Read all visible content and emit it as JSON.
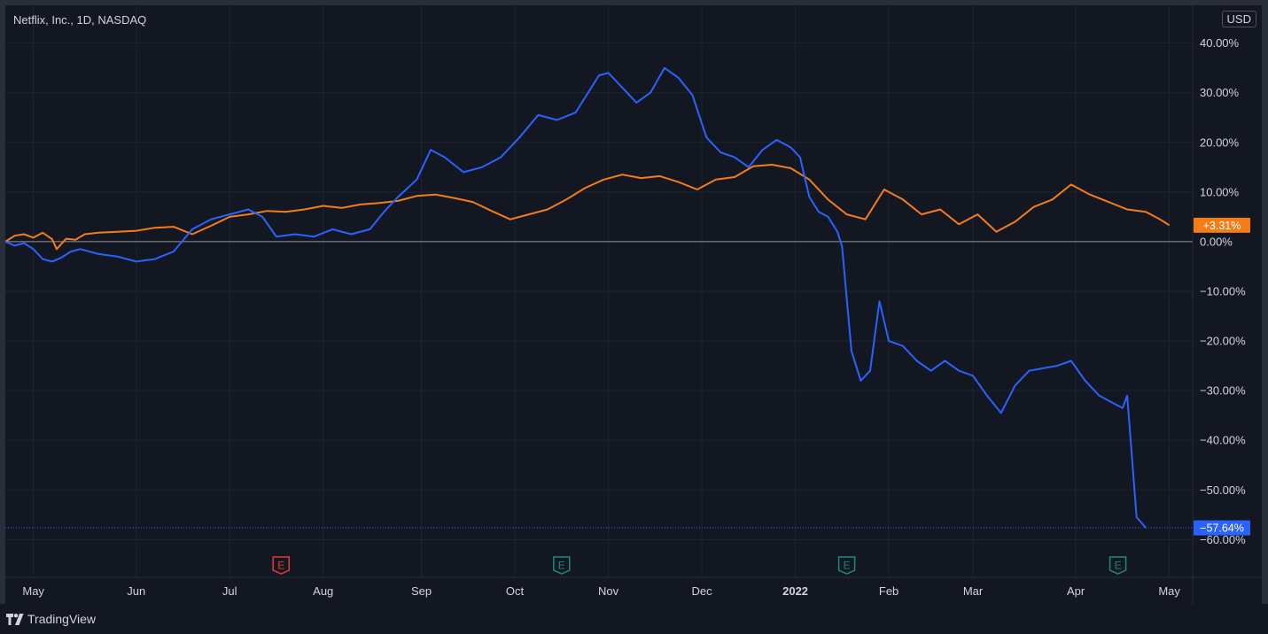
{
  "header": {
    "symbol_title": "Netflix, Inc., 1D, NASDAQ",
    "currency": "USD"
  },
  "footer": {
    "brand": "TradingView"
  },
  "colors": {
    "background": "#131722",
    "grid": "#1f2431",
    "text": "#d1d4dc",
    "blue_series": "#2962ff",
    "orange_series": "#f57c17",
    "earnings_red": "#e53935",
    "earnings_green": "#1a8a7a"
  },
  "chart_data": {
    "type": "line",
    "x_axis": {
      "ticks": [
        {
          "label": "May",
          "x": 0.9,
          "bold": false
        },
        {
          "label": "Jun",
          "x": 2.0,
          "bold": false
        },
        {
          "label": "Jul",
          "x": 3.0,
          "bold": false
        },
        {
          "label": "Aug",
          "x": 4.0,
          "bold": false
        },
        {
          "label": "Sep",
          "x": 5.05,
          "bold": false
        },
        {
          "label": "Oct",
          "x": 6.05,
          "bold": false
        },
        {
          "label": "Nov",
          "x": 7.05,
          "bold": false
        },
        {
          "label": "Dec",
          "x": 8.05,
          "bold": false
        },
        {
          "label": "2022",
          "x": 9.05,
          "bold": true
        },
        {
          "label": "Feb",
          "x": 10.05,
          "bold": false
        },
        {
          "label": "Mar",
          "x": 10.95,
          "bold": false
        },
        {
          "label": "Apr",
          "x": 12.05,
          "bold": false
        },
        {
          "label": "May",
          "x": 13.05,
          "bold": false
        }
      ],
      "xlim": [
        0.6,
        13.3
      ]
    },
    "y_axis": {
      "ticks": [
        40,
        30,
        20,
        10,
        0,
        -10,
        -20,
        -30,
        -40,
        -50,
        -60
      ],
      "tick_labels": [
        "40.00%",
        "30.00%",
        "20.00%",
        "10.00%",
        "0.00%",
        "−10.00%",
        "−20.00%",
        "−30.00%",
        "−40.00%",
        "−50.00%",
        "−60.00%"
      ],
      "ylim": [
        -67.6,
        47.6
      ],
      "position": "right"
    },
    "series": [
      {
        "color": "#f57c17",
        "last_value_label": "+3.31%",
        "points": [
          [
            0.6,
            0
          ],
          [
            0.7,
            1.2
          ],
          [
            0.8,
            1.5
          ],
          [
            0.9,
            0.8
          ],
          [
            1.0,
            1.8
          ],
          [
            1.1,
            0.5
          ],
          [
            1.15,
            -1.5
          ],
          [
            1.25,
            0.6
          ],
          [
            1.35,
            0.4
          ],
          [
            1.45,
            1.5
          ],
          [
            1.6,
            1.8
          ],
          [
            1.8,
            2
          ],
          [
            2.0,
            2.2
          ],
          [
            2.2,
            2.8
          ],
          [
            2.4,
            3.0
          ],
          [
            2.6,
            1.5
          ],
          [
            2.8,
            3.2
          ],
          [
            3.0,
            5.0
          ],
          [
            3.2,
            5.5
          ],
          [
            3.4,
            6.2
          ],
          [
            3.6,
            6.0
          ],
          [
            3.8,
            6.5
          ],
          [
            4.0,
            7.2
          ],
          [
            4.2,
            6.8
          ],
          [
            4.4,
            7.5
          ],
          [
            4.6,
            7.8
          ],
          [
            4.8,
            8.2
          ],
          [
            5.0,
            9.2
          ],
          [
            5.2,
            9.5
          ],
          [
            5.4,
            8.8
          ],
          [
            5.6,
            8.0
          ],
          [
            5.8,
            6.2
          ],
          [
            6.0,
            4.5
          ],
          [
            6.2,
            5.5
          ],
          [
            6.4,
            6.5
          ],
          [
            6.6,
            8.5
          ],
          [
            6.8,
            10.8
          ],
          [
            7.0,
            12.5
          ],
          [
            7.2,
            13.5
          ],
          [
            7.4,
            12.8
          ],
          [
            7.6,
            13.2
          ],
          [
            7.8,
            12.0
          ],
          [
            8.0,
            10.5
          ],
          [
            8.2,
            12.5
          ],
          [
            8.4,
            13.0
          ],
          [
            8.6,
            15.2
          ],
          [
            8.8,
            15.5
          ],
          [
            9.0,
            14.8
          ],
          [
            9.2,
            12.5
          ],
          [
            9.4,
            8.5
          ],
          [
            9.6,
            5.5
          ],
          [
            9.8,
            4.5
          ],
          [
            10.0,
            10.5
          ],
          [
            10.2,
            8.5
          ],
          [
            10.4,
            5.5
          ],
          [
            10.6,
            6.5
          ],
          [
            10.8,
            3.5
          ],
          [
            11.0,
            5.5
          ],
          [
            11.2,
            2.0
          ],
          [
            11.4,
            4.0
          ],
          [
            11.6,
            7.0
          ],
          [
            11.8,
            8.5
          ],
          [
            12.0,
            11.5
          ],
          [
            12.2,
            9.5
          ],
          [
            12.4,
            8.0
          ],
          [
            12.6,
            6.5
          ],
          [
            12.8,
            6.0
          ],
          [
            12.95,
            4.5
          ],
          [
            13.05,
            3.31
          ]
        ]
      },
      {
        "color": "#2962ff",
        "last_value_label": "−57.64%",
        "points": [
          [
            0.6,
            0
          ],
          [
            0.7,
            -0.8
          ],
          [
            0.8,
            -0.3
          ],
          [
            0.9,
            -1.5
          ],
          [
            1.0,
            -3.5
          ],
          [
            1.1,
            -4.0
          ],
          [
            1.2,
            -3.2
          ],
          [
            1.3,
            -2.0
          ],
          [
            1.4,
            -1.5
          ],
          [
            1.6,
            -2.5
          ],
          [
            1.8,
            -3.0
          ],
          [
            2.0,
            -4.0
          ],
          [
            2.2,
            -3.5
          ],
          [
            2.4,
            -2.0
          ],
          [
            2.6,
            2.5
          ],
          [
            2.8,
            4.5
          ],
          [
            3.0,
            5.5
          ],
          [
            3.2,
            6.5
          ],
          [
            3.35,
            5.0
          ],
          [
            3.5,
            1.0
          ],
          [
            3.7,
            1.5
          ],
          [
            3.9,
            1.0
          ],
          [
            4.1,
            2.5
          ],
          [
            4.3,
            1.5
          ],
          [
            4.5,
            2.5
          ],
          [
            4.65,
            6.0
          ],
          [
            4.8,
            9.0
          ],
          [
            5.0,
            12.5
          ],
          [
            5.15,
            18.5
          ],
          [
            5.3,
            17.0
          ],
          [
            5.5,
            14.0
          ],
          [
            5.7,
            15.0
          ],
          [
            5.9,
            17.0
          ],
          [
            6.1,
            21.0
          ],
          [
            6.3,
            25.5
          ],
          [
            6.5,
            24.5
          ],
          [
            6.7,
            26.0
          ],
          [
            6.8,
            29.0
          ],
          [
            6.95,
            33.5
          ],
          [
            7.05,
            34.0
          ],
          [
            7.2,
            31.0
          ],
          [
            7.35,
            28.0
          ],
          [
            7.5,
            30.0
          ],
          [
            7.65,
            35.0
          ],
          [
            7.8,
            33.0
          ],
          [
            7.95,
            29.5
          ],
          [
            8.1,
            21.0
          ],
          [
            8.25,
            18.0
          ],
          [
            8.4,
            17.0
          ],
          [
            8.55,
            15.0
          ],
          [
            8.7,
            18.5
          ],
          [
            8.85,
            20.5
          ],
          [
            9.0,
            19.0
          ],
          [
            9.1,
            17.0
          ],
          [
            9.2,
            9.0
          ],
          [
            9.3,
            6.0
          ],
          [
            9.4,
            5.0
          ],
          [
            9.5,
            2.0
          ],
          [
            9.55,
            -1.0
          ],
          [
            9.65,
            -22.0
          ],
          [
            9.75,
            -28.0
          ],
          [
            9.85,
            -26.0
          ],
          [
            9.95,
            -12.0
          ],
          [
            10.05,
            -20.0
          ],
          [
            10.2,
            -21.0
          ],
          [
            10.35,
            -24.0
          ],
          [
            10.5,
            -26.0
          ],
          [
            10.65,
            -24.0
          ],
          [
            10.8,
            -26.0
          ],
          [
            10.95,
            -27.0
          ],
          [
            11.1,
            -31.0
          ],
          [
            11.25,
            -34.5
          ],
          [
            11.4,
            -29.0
          ],
          [
            11.55,
            -26.0
          ],
          [
            11.7,
            -25.5
          ],
          [
            11.85,
            -25.0
          ],
          [
            12.0,
            -24.0
          ],
          [
            12.15,
            -28.0
          ],
          [
            12.3,
            -31.0
          ],
          [
            12.45,
            -32.5
          ],
          [
            12.55,
            -33.5
          ],
          [
            12.6,
            -31.0
          ],
          [
            12.7,
            -55.5
          ],
          [
            12.8,
            -57.64
          ]
        ]
      }
    ],
    "earnings_markers": [
      {
        "label": "E",
        "x": 3.55,
        "color": "#e53935"
      },
      {
        "label": "E",
        "x": 6.55,
        "color": "#1a8a7a"
      },
      {
        "label": "E",
        "x": 9.6,
        "color": "#1a8a7a"
      },
      {
        "label": "E",
        "x": 12.5,
        "color": "#1a8a7a"
      }
    ]
  }
}
